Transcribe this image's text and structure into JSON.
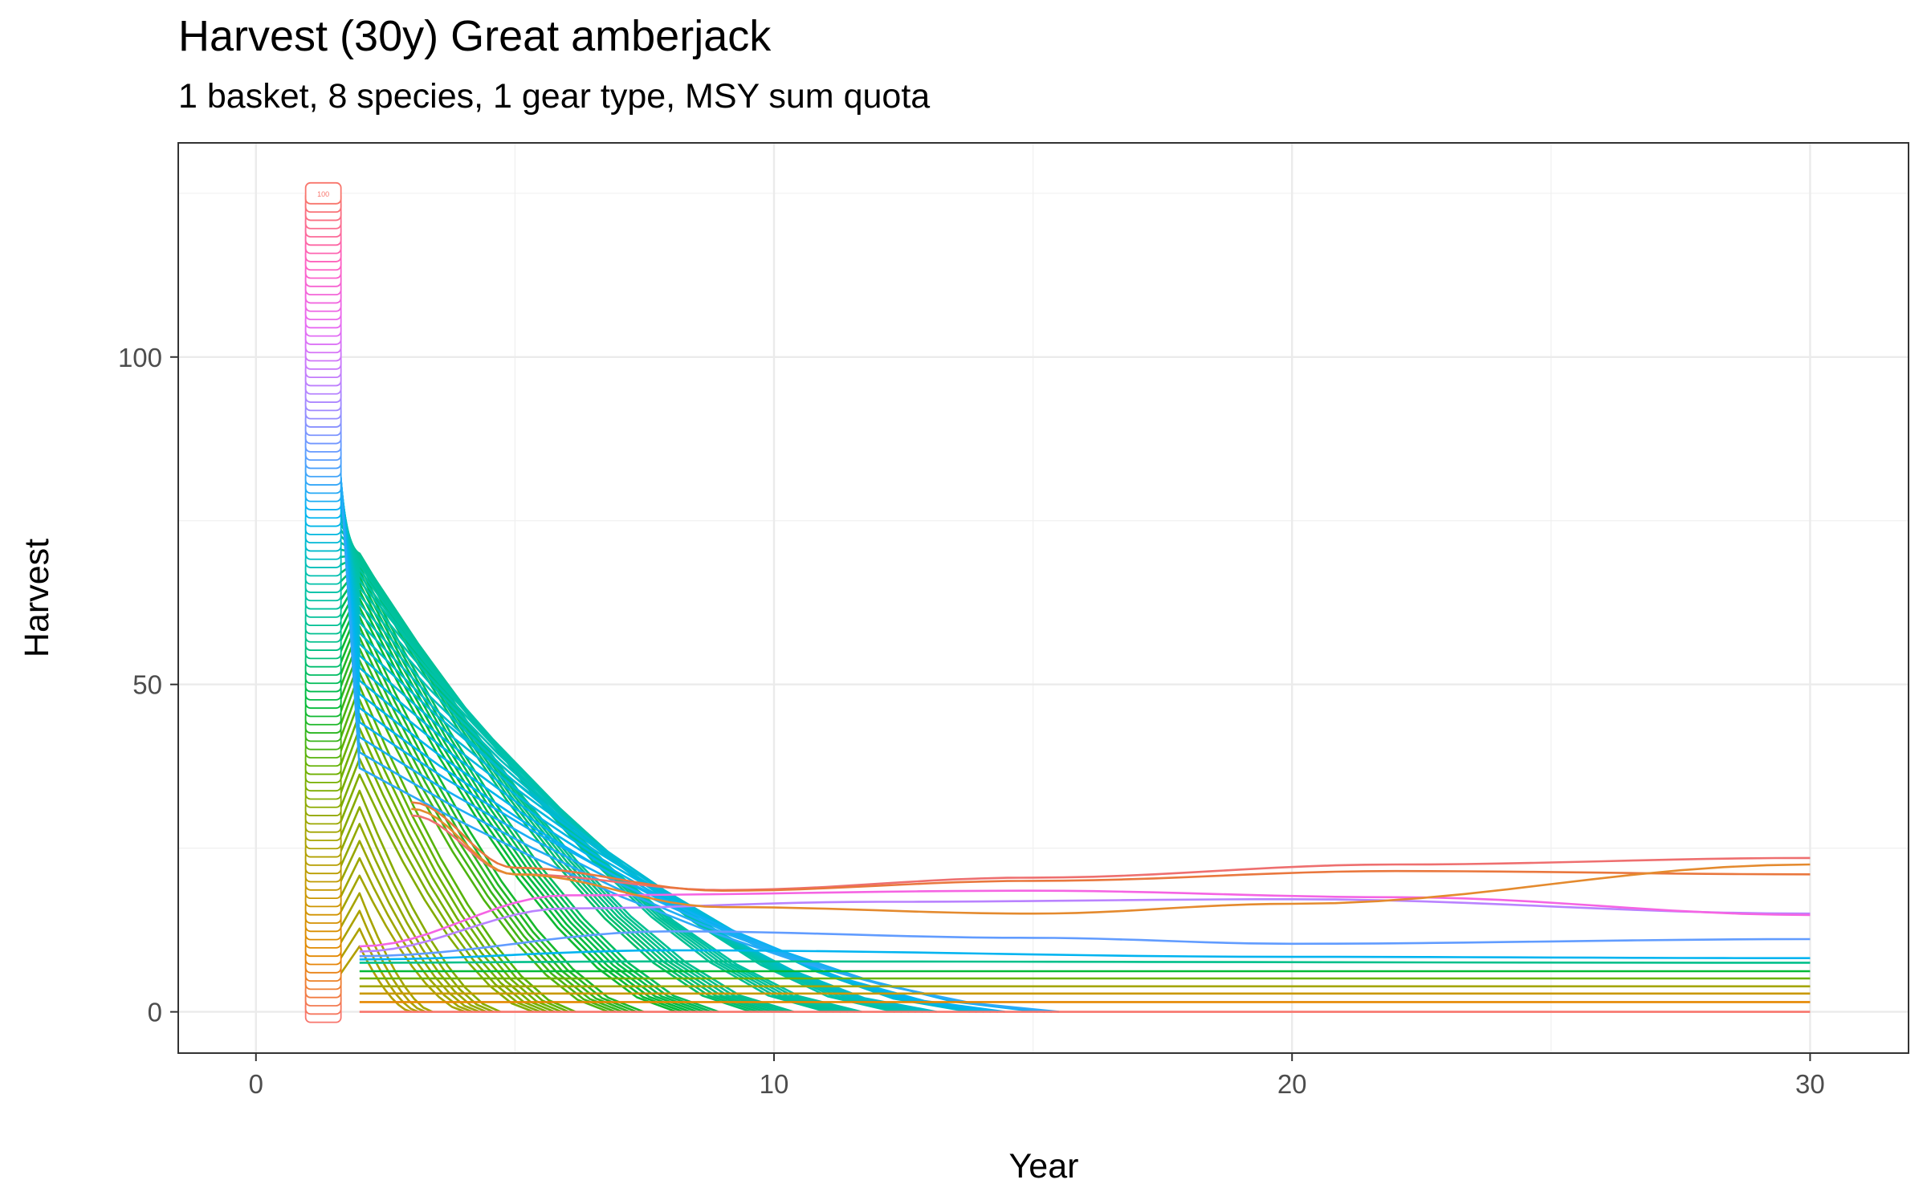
{
  "chart_data": {
    "type": "line",
    "title": "Harvest (30y) Great amberjack",
    "subtitle": "1 basket, 8 species, 1 gear type, MSY sum quota",
    "xlabel": "Year",
    "ylabel": "Harvest",
    "xlim": [
      -1.5,
      31.9
    ],
    "ylim": [
      -6.3,
      132.7
    ],
    "x_ticks": [
      0,
      10,
      20,
      30
    ],
    "y_ticks": [
      0,
      50,
      100
    ],
    "grid": true,
    "legend": "none",
    "label_column": {
      "x": 1.3,
      "y_min": 0,
      "y_max": 125,
      "count": 100,
      "top_label": "100",
      "note": ""
    },
    "steady_series": [
      {
        "color": "#F8766D",
        "values": [
          [
            2,
            0
          ],
          [
            30,
            0
          ]
        ]
      },
      {
        "color": "#E58700",
        "values": [
          [
            2,
            1.5
          ],
          [
            30,
            1.5
          ]
        ]
      },
      {
        "color": "#C99800",
        "values": [
          [
            2,
            2.8
          ],
          [
            30,
            2.8
          ]
        ]
      },
      {
        "color": "#A3A500",
        "values": [
          [
            2,
            3.9
          ],
          [
            30,
            3.9
          ]
        ]
      },
      {
        "color": "#6BB100",
        "values": [
          [
            2,
            5.1
          ],
          [
            30,
            5.1
          ]
        ]
      },
      {
        "color": "#00BA38",
        "values": [
          [
            2,
            6.2
          ],
          [
            30,
            6.2
          ]
        ]
      },
      {
        "color": "#00C08B",
        "values": [
          [
            2,
            7.5
          ],
          [
            8,
            7.7
          ],
          [
            30,
            7.5
          ]
        ]
      },
      {
        "color": "#00B4F0",
        "values": [
          [
            2,
            8.0
          ],
          [
            8,
            9.4
          ],
          [
            20,
            8.4
          ],
          [
            30,
            8.2
          ]
        ]
      },
      {
        "color": "#619CFF",
        "values": [
          [
            2,
            8.5
          ],
          [
            8,
            12.3
          ],
          [
            15,
            11.3
          ],
          [
            20,
            10.4
          ],
          [
            30,
            11.1
          ]
        ]
      },
      {
        "color": "#B983FF",
        "values": [
          [
            2,
            9.2
          ],
          [
            6,
            15.8
          ],
          [
            12,
            16.8
          ],
          [
            20,
            17.2
          ],
          [
            30,
            15.0
          ]
        ]
      },
      {
        "color": "#F564E3",
        "values": [
          [
            2,
            10.0
          ],
          [
            6,
            17.8
          ],
          [
            15,
            18.5
          ],
          [
            22,
            17.5
          ],
          [
            30,
            14.8
          ]
        ]
      },
      {
        "color": "#EE6F6F",
        "values": [
          [
            3,
            30
          ],
          [
            5,
            21
          ],
          [
            9,
            18.6
          ],
          [
            15,
            20.5
          ],
          [
            22,
            22.5
          ],
          [
            30,
            23.5
          ]
        ]
      },
      {
        "color": "#E9773E",
        "values": [
          [
            3,
            32
          ],
          [
            5,
            22
          ],
          [
            9,
            18.5
          ],
          [
            15,
            20.0
          ],
          [
            22,
            21.5
          ],
          [
            30,
            21.0
          ]
        ]
      },
      {
        "color": "#E48A2E",
        "values": [
          [
            3,
            31
          ],
          [
            5,
            21
          ],
          [
            9,
            16.0
          ],
          [
            15,
            15.0
          ],
          [
            20,
            16.5
          ],
          [
            30,
            22.5
          ]
        ]
      }
    ],
    "color_sequence": [
      "#F8766D",
      "#E58700",
      "#C99800",
      "#A3A500",
      "#6BB100",
      "#00BA38",
      "#00C08B",
      "#00C1AA",
      "#00B4F0",
      "#619CFF",
      "#B983FF",
      "#E76BF3",
      "#FF61C3",
      "#F8766D"
    ]
  }
}
